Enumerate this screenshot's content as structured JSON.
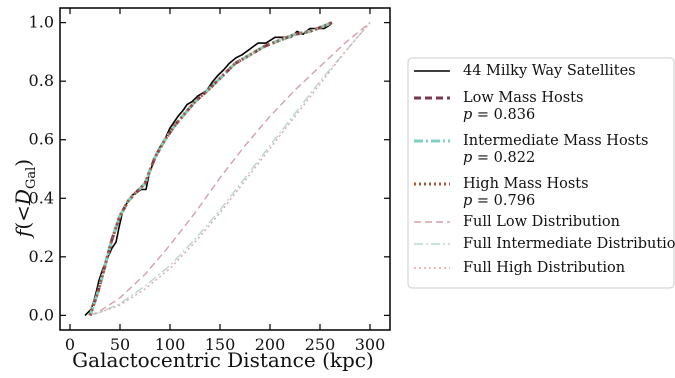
{
  "chart_data": {
    "type": "line",
    "xlabel": "Galactocentric Distance (kpc)",
    "ylabel": "f(<D_Gal)",
    "ylabel_parts": {
      "f": "f",
      "open": "(<",
      "D": "D",
      "sub": "Gal",
      "close": ")"
    },
    "xlim": [
      -10,
      320
    ],
    "ylim": [
      -0.05,
      1.05
    ],
    "xticks": [
      0,
      50,
      100,
      150,
      200,
      250,
      300
    ],
    "xtick_labels": [
      "0",
      "50",
      "100",
      "150",
      "200",
      "250",
      "300"
    ],
    "yticks": [
      0.0,
      0.2,
      0.4,
      0.6,
      0.8,
      1.0
    ],
    "ytick_labels": [
      "0.0",
      "0.2",
      "0.4",
      "0.6",
      "0.8",
      "1.0"
    ],
    "legend_placement": "right, outside plot",
    "series": [
      {
        "name": "44 Milky Way Satellites",
        "color": "#000000",
        "style": "solid",
        "x": [
          15,
          21,
          24,
          27,
          29,
          33,
          38,
          42,
          46,
          49,
          53,
          58,
          62,
          67,
          71,
          76,
          79,
          83,
          86,
          89,
          93,
          96,
          100,
          104,
          108,
          113,
          117,
          122,
          128,
          133,
          137,
          143,
          148,
          154,
          159,
          166,
          172,
          180,
          188,
          196,
          205,
          214,
          221,
          227,
          233,
          240,
          247,
          254,
          259,
          262
        ],
        "y": [
          0,
          0.02,
          0.05,
          0.09,
          0.12,
          0.16,
          0.2,
          0.23,
          0.25,
          0.3,
          0.36,
          0.39,
          0.41,
          0.42,
          0.43,
          0.43,
          0.48,
          0.52,
          0.55,
          0.57,
          0.59,
          0.61,
          0.64,
          0.66,
          0.68,
          0.7,
          0.72,
          0.73,
          0.75,
          0.76,
          0.77,
          0.8,
          0.82,
          0.84,
          0.86,
          0.88,
          0.89,
          0.91,
          0.93,
          0.93,
          0.95,
          0.95,
          0.95,
          0.97,
          0.96,
          0.98,
          0.98,
          0.98,
          0.99,
          1.0
        ]
      },
      {
        "name": "Low Mass Hosts",
        "label2": "p = 0.836",
        "color": "#7b3650",
        "style": "dashed",
        "x": [
          20,
          28,
          35,
          42,
          50,
          58,
          66,
          75,
          85,
          95,
          105,
          115,
          125,
          138,
          150,
          165,
          180,
          195,
          210,
          225,
          240,
          255,
          262
        ],
        "y": [
          0,
          0.08,
          0.17,
          0.26,
          0.34,
          0.39,
          0.42,
          0.45,
          0.54,
          0.6,
          0.65,
          0.69,
          0.73,
          0.77,
          0.81,
          0.86,
          0.89,
          0.92,
          0.94,
          0.96,
          0.97,
          0.99,
          1.0
        ]
      },
      {
        "name": "Intermediate Mass Hosts",
        "label2": "p = 0.822",
        "color": "#80cfc4",
        "style": "dashdot",
        "x": [
          20,
          28,
          35,
          42,
          50,
          58,
          66,
          75,
          85,
          95,
          105,
          115,
          125,
          138,
          150,
          165,
          180,
          195,
          210,
          225,
          240,
          255,
          262
        ],
        "y": [
          0,
          0.08,
          0.17,
          0.26,
          0.34,
          0.39,
          0.42,
          0.45,
          0.54,
          0.6,
          0.65,
          0.69,
          0.73,
          0.77,
          0.81,
          0.86,
          0.89,
          0.92,
          0.94,
          0.96,
          0.97,
          0.99,
          1.0
        ]
      },
      {
        "name": "High Mass Hosts",
        "label2": "p = 0.796",
        "color": "#a8553a",
        "style": "dotted",
        "x": [
          20,
          28,
          35,
          42,
          50,
          58,
          66,
          75,
          85,
          95,
          105,
          115,
          125,
          138,
          150,
          165,
          180,
          195,
          210,
          225,
          240,
          255,
          262
        ],
        "y": [
          0,
          0.08,
          0.17,
          0.26,
          0.34,
          0.39,
          0.42,
          0.45,
          0.54,
          0.6,
          0.65,
          0.69,
          0.73,
          0.77,
          0.81,
          0.86,
          0.89,
          0.92,
          0.94,
          0.96,
          0.97,
          0.99,
          1.0
        ]
      },
      {
        "name": "Full Low Distribution",
        "color": "#d4a0aa",
        "style": "dashed",
        "x": [
          20,
          30,
          50,
          75,
          100,
          125,
          150,
          175,
          200,
          225,
          250,
          275,
          300
        ],
        "y": [
          0,
          0.015,
          0.06,
          0.14,
          0.24,
          0.35,
          0.47,
          0.58,
          0.68,
          0.77,
          0.85,
          0.93,
          1.0
        ]
      },
      {
        "name": "Full Intermediate Distribution",
        "color": "#b7d6d2",
        "style": "dashdot",
        "x": [
          20,
          30,
          50,
          75,
          100,
          125,
          150,
          175,
          200,
          225,
          250,
          275,
          300
        ],
        "y": [
          0,
          0.01,
          0.04,
          0.1,
          0.17,
          0.26,
          0.36,
          0.47,
          0.58,
          0.69,
          0.8,
          0.9,
          1.0
        ]
      },
      {
        "name": "Full High Distribution",
        "color": "#dba7a6",
        "style": "dotted",
        "x": [
          20,
          30,
          50,
          75,
          100,
          125,
          150,
          175,
          200,
          225,
          250,
          275,
          300
        ],
        "y": [
          0,
          0.01,
          0.035,
          0.09,
          0.16,
          0.25,
          0.35,
          0.46,
          0.57,
          0.68,
          0.79,
          0.9,
          1.0
        ]
      }
    ]
  }
}
